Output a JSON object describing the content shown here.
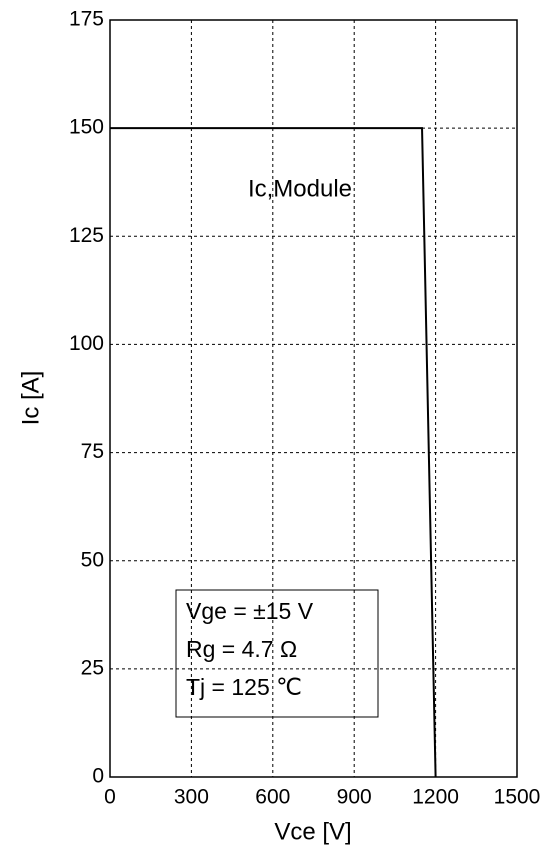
{
  "chart_data": {
    "type": "line",
    "x": [
      0,
      1150,
      1200
    ],
    "values": [
      150,
      150,
      0
    ],
    "color": "#000000",
    "xlim": [
      0,
      1500
    ],
    "xticks": [
      0,
      300,
      600,
      900,
      1200,
      1500
    ],
    "ylim": [
      0,
      175
    ],
    "yticks": [
      0,
      25,
      50,
      75,
      100,
      125,
      150,
      175
    ],
    "grid": true,
    "xlabel": "Vce [V]",
    "ylabel": "Ic [A]",
    "annotations": [
      "Ic,Module"
    ],
    "conditions": [
      "Vge = ±15 V",
      "Rg = 4.7 Ω",
      "Tj = 125 ℃"
    ]
  }
}
